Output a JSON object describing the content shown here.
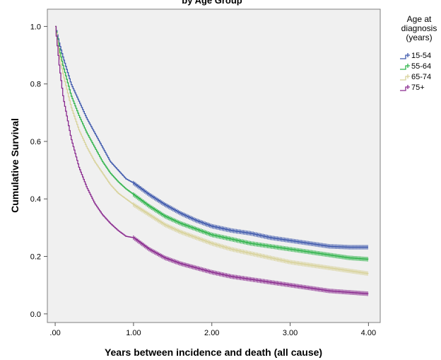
{
  "chart_data": {
    "type": "line",
    "title": "by Age Group",
    "xlabel": "Years between incidence and death (all cause)",
    "ylabel": "Cumulative Survival",
    "xlim": [
      -0.1,
      4.15
    ],
    "ylim": [
      -0.03,
      1.06
    ],
    "x_ticks": [
      0,
      1,
      2,
      3,
      4
    ],
    "x_tick_labels": [
      ".00",
      "1.00",
      "2.00",
      "3.00",
      "4.00"
    ],
    "y_ticks": [
      0,
      0.2,
      0.4,
      0.6,
      0.8,
      1.0
    ],
    "y_tick_labels": [
      "0.0",
      "0.2",
      "0.4",
      "0.6",
      "0.8",
      "1.0"
    ],
    "grid": false,
    "plot_background": "#f0f0f0",
    "legend": {
      "title_lines": [
        "Age at",
        "diagnosis",
        "(years)"
      ],
      "position": "right"
    },
    "censor_start": 1.0,
    "series": [
      {
        "name": "15-54",
        "color": "#3e58ac",
        "x": [
          0,
          0.05,
          0.1,
          0.2,
          0.3,
          0.4,
          0.5,
          0.6,
          0.7,
          0.8,
          0.9,
          1.0,
          1.2,
          1.4,
          1.6,
          1.8,
          2.0,
          2.25,
          2.5,
          2.75,
          3.0,
          3.25,
          3.5,
          3.75,
          4.0
        ],
        "y": [
          1.0,
          0.94,
          0.89,
          0.8,
          0.74,
          0.68,
          0.63,
          0.58,
          0.53,
          0.5,
          0.47,
          0.455,
          0.415,
          0.38,
          0.35,
          0.325,
          0.305,
          0.29,
          0.28,
          0.265,
          0.255,
          0.245,
          0.235,
          0.232,
          0.232
        ]
      },
      {
        "name": "55-64",
        "color": "#2fb34a",
        "x": [
          0,
          0.05,
          0.1,
          0.2,
          0.3,
          0.4,
          0.5,
          0.6,
          0.7,
          0.8,
          0.9,
          1.0,
          1.2,
          1.4,
          1.6,
          1.8,
          2.0,
          2.25,
          2.5,
          2.75,
          3.0,
          3.25,
          3.5,
          3.75,
          4.0
        ],
        "y": [
          1.0,
          0.92,
          0.86,
          0.76,
          0.69,
          0.63,
          0.58,
          0.53,
          0.49,
          0.46,
          0.435,
          0.415,
          0.375,
          0.34,
          0.315,
          0.295,
          0.275,
          0.26,
          0.245,
          0.235,
          0.225,
          0.215,
          0.205,
          0.195,
          0.19
        ]
      },
      {
        "name": "65-74",
        "color": "#d8d29a",
        "x": [
          0,
          0.05,
          0.1,
          0.2,
          0.3,
          0.4,
          0.5,
          0.6,
          0.7,
          0.8,
          0.9,
          1.0,
          1.2,
          1.4,
          1.6,
          1.8,
          2.0,
          2.25,
          2.5,
          2.75,
          3.0,
          3.25,
          3.5,
          3.75,
          4.0
        ],
        "y": [
          1.0,
          0.9,
          0.83,
          0.72,
          0.64,
          0.58,
          0.53,
          0.49,
          0.45,
          0.42,
          0.4,
          0.38,
          0.345,
          0.31,
          0.285,
          0.265,
          0.245,
          0.225,
          0.21,
          0.195,
          0.18,
          0.17,
          0.16,
          0.15,
          0.14
        ]
      },
      {
        "name": "75+",
        "color": "#8a2b8f",
        "x": [
          0,
          0.05,
          0.1,
          0.2,
          0.3,
          0.4,
          0.5,
          0.6,
          0.7,
          0.8,
          0.9,
          1.0,
          1.2,
          1.4,
          1.6,
          1.8,
          2.0,
          2.25,
          2.5,
          2.75,
          3.0,
          3.25,
          3.5,
          3.75,
          4.0
        ],
        "y": [
          1.0,
          0.86,
          0.75,
          0.61,
          0.51,
          0.44,
          0.385,
          0.345,
          0.315,
          0.29,
          0.27,
          0.265,
          0.225,
          0.195,
          0.175,
          0.16,
          0.145,
          0.13,
          0.12,
          0.11,
          0.1,
          0.09,
          0.08,
          0.075,
          0.07
        ]
      }
    ]
  }
}
